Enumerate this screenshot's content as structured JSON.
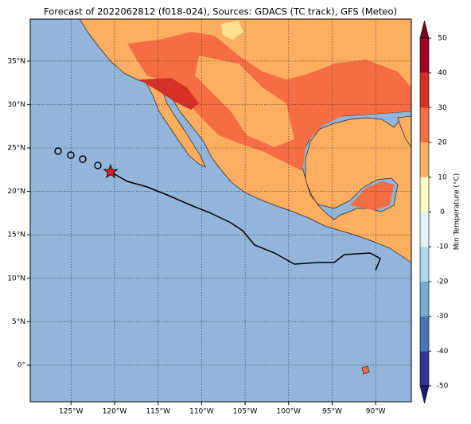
{
  "title": "Forecast of 2022062812 (f018-024), Sources: GDACS (TC track), GFS (Meteo)",
  "map": {
    "lon_labels": [
      {
        "value": -125,
        "label": "125°W"
      },
      {
        "value": -120,
        "label": "120°W"
      },
      {
        "value": -115,
        "label": "115°W"
      },
      {
        "value": -110,
        "label": "110°W"
      },
      {
        "value": -105,
        "label": "105°W"
      },
      {
        "value": -100,
        "label": "100°W"
      },
      {
        "value": -95,
        "label": "95°W"
      },
      {
        "value": -90,
        "label": "90°W"
      }
    ],
    "lat_labels": [
      {
        "value": 35,
        "label": "35°N"
      },
      {
        "value": 30,
        "label": "30°N"
      },
      {
        "value": 25,
        "label": "25°N"
      },
      {
        "value": 20,
        "label": "20°N"
      },
      {
        "value": 15,
        "label": "15°N"
      },
      {
        "value": 10,
        "label": "10°N"
      },
      {
        "value": 5,
        "label": "5°N"
      },
      {
        "value": 0,
        "label": "0°"
      }
    ]
  },
  "colorbar": {
    "label": "Min Temperature (°C)",
    "ticks": [
      -50,
      -40,
      -30,
      -20,
      -10,
      0,
      10,
      20,
      30,
      40,
      50
    ],
    "colors": [
      "#313695",
      "#4575b4",
      "#74add1",
      "#abd9e9",
      "#e0f3f8",
      "#ffffbf",
      "#fdae61",
      "#f46d43",
      "#d73027",
      "#a50026"
    ]
  }
}
